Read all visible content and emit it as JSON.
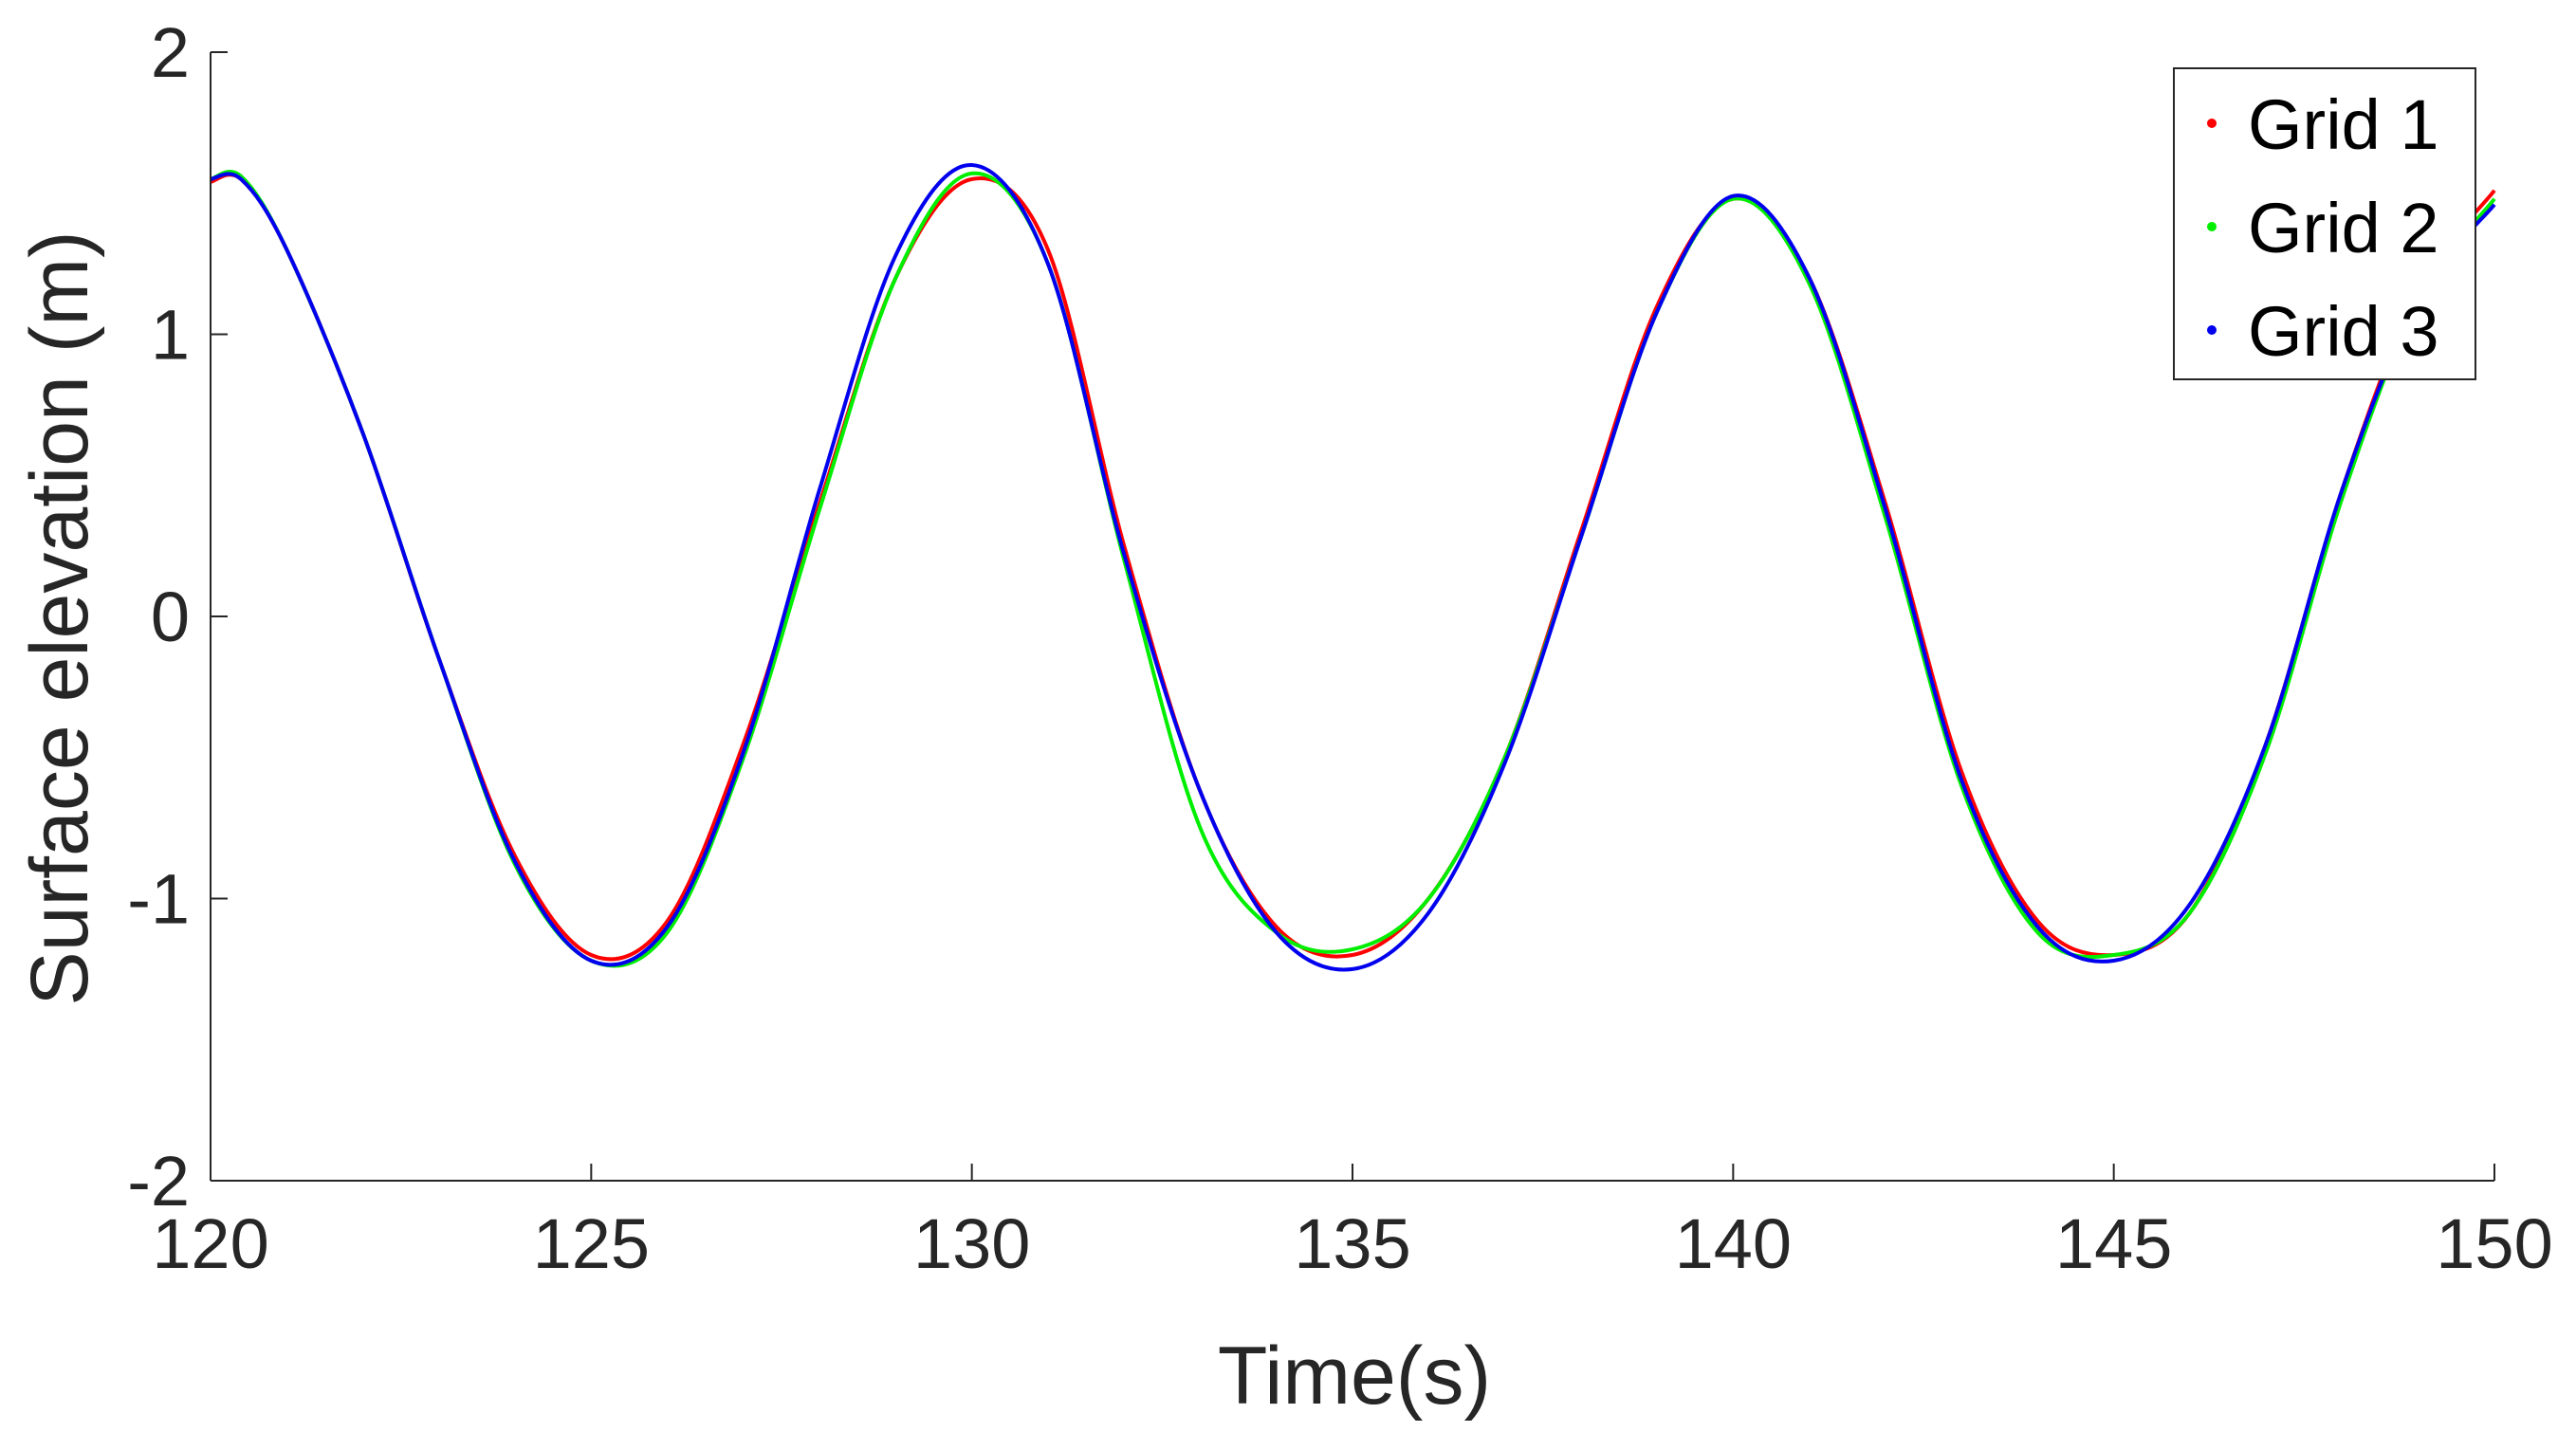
{
  "chart_data": {
    "type": "line",
    "xlabel": "Time(s)",
    "ylabel": "Surface elevation (m)",
    "xlim": [
      120,
      150
    ],
    "ylim": [
      -2,
      2
    ],
    "xticks": [
      120,
      125,
      130,
      135,
      140,
      145,
      150
    ],
    "yticks": [
      -2,
      -1,
      0,
      1,
      2
    ],
    "grid": false,
    "legend_position": "top-right",
    "series": [
      {
        "name": "Grid 1",
        "color": "#ff0000",
        "x": [
          120,
          120.4,
          121,
          122,
          123,
          124,
          125,
          126,
          127,
          128,
          129,
          130,
          131,
          132,
          133,
          134,
          135,
          136,
          137,
          138,
          139,
          140,
          141,
          142,
          143,
          144,
          145,
          146,
          147,
          148,
          149,
          150
        ],
        "y": [
          1.54,
          1.55,
          1.3,
          0.65,
          -0.15,
          -0.85,
          -1.2,
          -1.08,
          -0.45,
          0.4,
          1.2,
          1.55,
          1.3,
          0.25,
          -0.62,
          -1.1,
          -1.2,
          -1.0,
          -0.5,
          0.3,
          1.1,
          1.48,
          1.2,
          0.4,
          -0.55,
          -1.08,
          -1.2,
          -1.05,
          -0.45,
          0.45,
          1.15,
          1.51
        ]
      },
      {
        "name": "Grid 2",
        "color": "#00ee00",
        "x": [
          120,
          120.4,
          121,
          122,
          123,
          124,
          125,
          126,
          127,
          128,
          129,
          130,
          131,
          132,
          133,
          134,
          135,
          136,
          137,
          138,
          139,
          140,
          141,
          142,
          143,
          144,
          145,
          146,
          147,
          148,
          149,
          150
        ],
        "y": [
          1.55,
          1.56,
          1.3,
          0.65,
          -0.15,
          -0.88,
          -1.22,
          -1.12,
          -0.5,
          0.38,
          1.2,
          1.57,
          1.25,
          0.2,
          -0.75,
          -1.12,
          -1.18,
          -1.0,
          -0.5,
          0.28,
          1.08,
          1.48,
          1.18,
          0.35,
          -0.6,
          -1.12,
          -1.2,
          -1.05,
          -0.48,
          0.42,
          1.12,
          1.48
        ]
      },
      {
        "name": "Grid 3",
        "color": "#0000ee",
        "x": [
          120,
          120.4,
          121,
          122,
          123,
          124,
          125,
          126,
          127,
          128,
          129,
          130,
          131,
          132,
          133,
          134,
          135,
          136,
          137,
          138,
          139,
          140,
          141,
          142,
          143,
          144,
          145,
          146,
          147,
          148,
          149,
          150
        ],
        "y": [
          1.55,
          1.55,
          1.3,
          0.65,
          -0.15,
          -0.87,
          -1.22,
          -1.1,
          -0.48,
          0.45,
          1.28,
          1.6,
          1.25,
          0.22,
          -0.62,
          -1.12,
          -1.25,
          -1.05,
          -0.52,
          0.28,
          1.08,
          1.49,
          1.2,
          0.38,
          -0.58,
          -1.1,
          -1.22,
          -1.02,
          -0.45,
          0.45,
          1.12,
          1.46
        ]
      }
    ]
  }
}
